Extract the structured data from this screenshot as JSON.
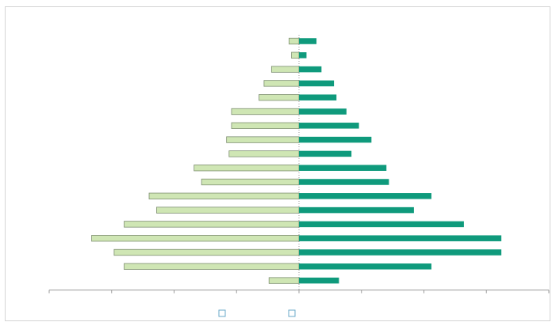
{
  "colors": {
    "left_fill": "#cfe6b4",
    "left_stroke": "#7f8f72",
    "right_fill": "#0f9a7c",
    "axis": "#9a9a9a",
    "grid": "#d7d7d7",
    "legend_box": "#6aa8c9"
  },
  "chart_data": {
    "type": "bar",
    "orientation": "horizontal",
    "categories_count": 18,
    "series": [
      {
        "side": "left",
        "values": [
          0.4,
          0.3,
          1.1,
          1.4,
          1.6,
          2.7,
          2.7,
          2.9,
          2.8,
          4.2,
          3.9,
          6.0,
          5.7,
          7.0,
          8.3,
          7.4,
          7.0,
          1.2
        ]
      },
      {
        "side": "right",
        "values": [
          0.7,
          0.3,
          0.9,
          1.4,
          1.5,
          1.9,
          2.4,
          2.9,
          2.1,
          3.5,
          3.6,
          5.3,
          4.6,
          6.6,
          8.1,
          8.1,
          5.3,
          1.6
        ]
      }
    ],
    "x_range": [
      -10,
      10
    ],
    "title": "",
    "xlabel": "",
    "ylabel": "",
    "grid": false,
    "legend": {
      "placement": "bottom-center",
      "entries": [
        "",
        ""
      ]
    }
  }
}
